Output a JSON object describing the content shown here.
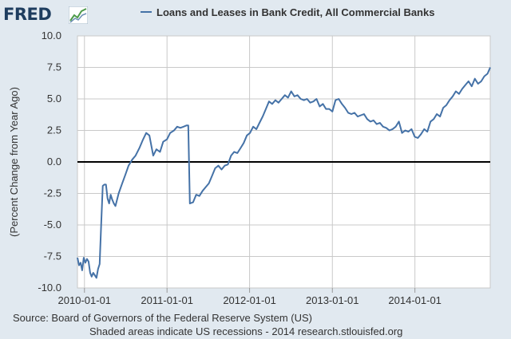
{
  "logo": {
    "text": "FRED"
  },
  "legend": {
    "label": "Loans and Leases in Bank Credit, All Commercial Banks"
  },
  "colors": {
    "series": "#4572a7",
    "plot_bg": "#ffffff",
    "page_bg": "#e1e9f0",
    "grid": "#c9c9c9",
    "zero_line": "#000000"
  },
  "footer": {
    "source": "Source: Board of Governors of the Federal Reserve System (US)",
    "note": "Shaded areas indicate US recessions - 2014 research.stlouisfed.org"
  },
  "chart_data": {
    "type": "line",
    "title": "",
    "xlabel": "",
    "ylabel": "(Percent Change from Year Ago)",
    "ylim": [
      -10,
      10
    ],
    "xlim": [
      "2009-12-01",
      "2014-11-30"
    ],
    "yticks": [
      "10.0",
      "7.5",
      "5.0",
      "2.5",
      "0.0",
      "-2.5",
      "-5.0",
      "-7.5",
      "-10.0"
    ],
    "xticks": [
      "2010-01-01",
      "2011-01-01",
      "2012-01-01",
      "2013-01-01",
      "2014-01-01"
    ],
    "reference_line": 0,
    "grid": true,
    "series": [
      {
        "name": "Loans and Leases in Bank Credit, All Commercial Banks",
        "x": [
          "2009-12-01",
          "2009-12-08",
          "2009-12-15",
          "2009-12-22",
          "2009-12-29",
          "2010-01-05",
          "2010-01-12",
          "2010-01-19",
          "2010-01-26",
          "2010-02-02",
          "2010-02-09",
          "2010-02-16",
          "2010-02-23",
          "2010-03-02",
          "2010-03-09",
          "2010-03-16",
          "2010-03-23",
          "2010-03-30",
          "2010-04-06",
          "2010-04-13",
          "2010-04-20",
          "2010-04-27",
          "2010-05-04",
          "2010-05-11",
          "2010-05-18",
          "2010-05-25",
          "2010-06-01",
          "2010-06-15",
          "2010-07-01",
          "2010-07-15",
          "2010-08-01",
          "2010-08-15",
          "2010-09-01",
          "2010-09-15",
          "2010-10-01",
          "2010-10-15",
          "2010-11-01",
          "2010-11-15",
          "2010-12-01",
          "2010-12-15",
          "2011-01-01",
          "2011-01-15",
          "2011-02-01",
          "2011-02-15",
          "2011-03-01",
          "2011-03-15",
          "2011-03-29",
          "2011-04-05",
          "2011-04-12",
          "2011-04-26",
          "2011-05-10",
          "2011-05-24",
          "2011-06-07",
          "2011-06-21",
          "2011-07-05",
          "2011-07-19",
          "2011-08-02",
          "2011-08-16",
          "2011-08-30",
          "2011-09-13",
          "2011-09-27",
          "2011-10-11",
          "2011-10-25",
          "2011-11-08",
          "2011-11-22",
          "2011-12-06",
          "2011-12-20",
          "2012-01-03",
          "2012-01-17",
          "2012-01-31",
          "2012-02-14",
          "2012-02-28",
          "2012-03-13",
          "2012-03-27",
          "2012-04-10",
          "2012-04-24",
          "2012-05-08",
          "2012-05-22",
          "2012-06-05",
          "2012-06-19",
          "2012-07-03",
          "2012-07-17",
          "2012-07-31",
          "2012-08-14",
          "2012-08-28",
          "2012-09-11",
          "2012-09-25",
          "2012-10-09",
          "2012-10-23",
          "2012-11-06",
          "2012-11-20",
          "2012-12-04",
          "2012-12-18",
          "2013-01-01",
          "2013-01-15",
          "2013-01-29",
          "2013-02-12",
          "2013-02-26",
          "2013-03-12",
          "2013-03-26",
          "2013-04-09",
          "2013-04-23",
          "2013-05-07",
          "2013-05-21",
          "2013-06-04",
          "2013-06-18",
          "2013-07-02",
          "2013-07-16",
          "2013-07-30",
          "2013-08-13",
          "2013-08-27",
          "2013-09-10",
          "2013-09-24",
          "2013-10-08",
          "2013-10-22",
          "2013-11-05",
          "2013-11-19",
          "2013-12-03",
          "2013-12-17",
          "2013-12-31",
          "2014-01-14",
          "2014-01-28",
          "2014-02-11",
          "2014-02-25",
          "2014-03-11",
          "2014-03-25",
          "2014-04-08",
          "2014-04-22",
          "2014-05-06",
          "2014-05-20",
          "2014-06-03",
          "2014-06-17",
          "2014-07-01",
          "2014-07-15",
          "2014-07-29",
          "2014-08-12",
          "2014-08-26",
          "2014-09-09",
          "2014-09-23",
          "2014-10-07",
          "2014-10-21",
          "2014-11-04",
          "2014-11-18",
          "2014-11-30"
        ],
        "values": [
          -7.6,
          -8.2,
          -8.0,
          -8.6,
          -7.6,
          -8.0,
          -7.7,
          -7.9,
          -8.8,
          -9.1,
          -8.8,
          -9.0,
          -9.2,
          -8.5,
          -8.1,
          -5.0,
          -1.9,
          -1.8,
          -1.8,
          -2.9,
          -3.3,
          -2.6,
          -3.0,
          -3.3,
          -3.5,
          -3.0,
          -2.5,
          -1.8,
          -1.0,
          -0.3,
          0.2,
          0.5,
          1.1,
          1.7,
          2.3,
          2.1,
          0.5,
          1.0,
          0.8,
          1.6,
          1.8,
          2.3,
          2.5,
          2.8,
          2.7,
          2.8,
          2.9,
          2.9,
          -3.3,
          -3.2,
          -2.6,
          -2.7,
          -2.3,
          -2.0,
          -1.7,
          -1.1,
          -0.5,
          -0.3,
          -0.6,
          -0.3,
          -0.2,
          0.5,
          0.8,
          0.7,
          1.1,
          1.5,
          2.1,
          2.3,
          2.8,
          2.6,
          3.1,
          3.6,
          4.2,
          4.8,
          4.6,
          4.9,
          4.7,
          5.0,
          5.3,
          5.1,
          5.6,
          5.2,
          5.3,
          5.0,
          4.9,
          5.0,
          4.7,
          4.8,
          5.0,
          4.4,
          4.6,
          4.2,
          4.2,
          4.0,
          4.9,
          5.0,
          4.6,
          4.3,
          3.9,
          3.8,
          3.9,
          3.6,
          3.7,
          3.8,
          3.4,
          3.2,
          3.3,
          3.0,
          3.1,
          2.8,
          2.7,
          2.5,
          2.6,
          2.8,
          3.2,
          2.3,
          2.5,
          2.4,
          2.6,
          2.0,
          1.9,
          2.2,
          2.6,
          2.4,
          3.2,
          3.4,
          3.8,
          3.6,
          4.3,
          4.5,
          4.9,
          5.2,
          5.6,
          5.4,
          5.8,
          6.1,
          6.4,
          6.0,
          6.6,
          6.2,
          6.4,
          6.8,
          7.0,
          7.5
        ]
      }
    ]
  }
}
